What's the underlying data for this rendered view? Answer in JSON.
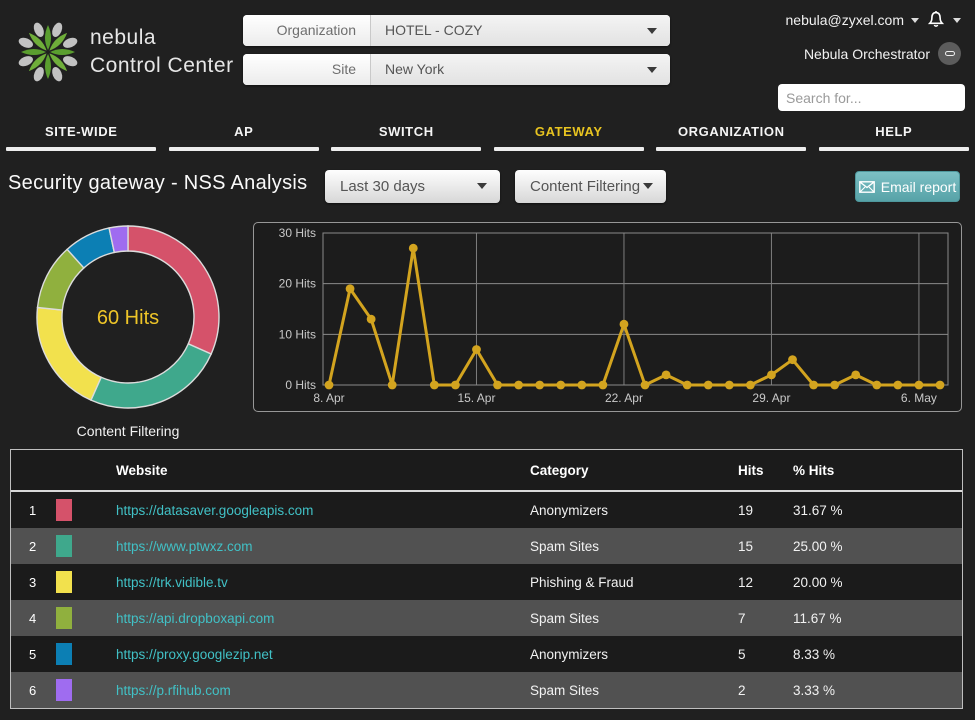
{
  "header": {
    "brand_line1": "nebula",
    "brand_line2": "Control Center",
    "org_selector": {
      "label": "Organization",
      "value": "HOTEL - COZY"
    },
    "site_selector": {
      "label": "Site",
      "value": "New York"
    },
    "account_email": "nebula@zyxel.com",
    "orchestrator_label": "Nebula Orchestrator",
    "search_placeholder": "Search for..."
  },
  "nav": {
    "tabs": [
      {
        "label": "SITE-WIDE",
        "active": false
      },
      {
        "label": "AP",
        "active": false
      },
      {
        "label": "SWITCH",
        "active": false
      },
      {
        "label": "GATEWAY",
        "active": true
      },
      {
        "label": "ORGANIZATION",
        "active": false
      },
      {
        "label": "HELP",
        "active": false
      }
    ],
    "active_color": "#e8c420"
  },
  "toolbar": {
    "page_title": "Security gateway - NSS Analysis",
    "time_filter_value": "Last 30 days",
    "type_filter_value": "Content Filtering",
    "email_report_label": "Email report",
    "email_button_color": "#63adb2"
  },
  "chart_data": [
    {
      "type": "pie",
      "style": "donut",
      "title": "Content Filtering",
      "center_label": "60 Hits",
      "total_hits": 60,
      "legend_position": "none",
      "slices": [
        {
          "label": "https://datasaver.googleapis.com",
          "category": "Anonymizers",
          "value": 19,
          "pct": 31.67,
          "color": "#d5526a"
        },
        {
          "label": "https://www.ptwxz.com",
          "category": "Spam Sites",
          "value": 15,
          "pct": 25.0,
          "color": "#3fa88c"
        },
        {
          "label": "https://trk.vidible.tv",
          "category": "Phishing & Fraud",
          "value": 12,
          "pct": 20.0,
          "color": "#f2e14d"
        },
        {
          "label": "https://api.dropboxapi.com",
          "category": "Spam Sites",
          "value": 7,
          "pct": 11.67,
          "color": "#90b03e"
        },
        {
          "label": "https://proxy.googlezip.net",
          "category": "Anonymizers",
          "value": 5,
          "pct": 8.33,
          "color": "#0c7fb4"
        },
        {
          "label": "https://p.rfihub.com",
          "category": "Spam Sites",
          "value": 2,
          "pct": 3.33,
          "color": "#9f6cf0"
        }
      ]
    },
    {
      "type": "line",
      "title": "",
      "xlabel": "",
      "ylabel": "Hits",
      "ylim": [
        0,
        30
      ],
      "yticks": [
        0,
        10,
        20,
        30
      ],
      "ytick_labels": [
        "0 Hits",
        "10 Hits",
        "20 Hits",
        "30 Hits"
      ],
      "grid": true,
      "x": [
        "8. Apr",
        "9. Apr",
        "10. Apr",
        "11. Apr",
        "12. Apr",
        "13. Apr",
        "14. Apr",
        "15. Apr",
        "16. Apr",
        "17. Apr",
        "18. Apr",
        "19. Apr",
        "20. Apr",
        "21. Apr",
        "22. Apr",
        "23. Apr",
        "24. Apr",
        "25. Apr",
        "26. Apr",
        "27. Apr",
        "28. Apr",
        "29. Apr",
        "30. Apr",
        "1. May",
        "2. May",
        "3. May",
        "4. May",
        "5. May",
        "6. May",
        "7. May"
      ],
      "xtick_shown_indices": [
        0,
        7,
        14,
        21,
        28
      ],
      "xtick_shown_labels": [
        "8. Apr",
        "15. Apr",
        "22. Apr",
        "29. Apr",
        "6. May"
      ],
      "series": [
        {
          "name": "Hits",
          "color": "#d3a41f",
          "values": [
            0,
            19,
            13,
            0,
            27,
            0,
            0,
            7,
            0,
            0,
            0,
            0,
            0,
            0,
            12,
            0,
            2,
            0,
            0,
            0,
            0,
            2,
            5,
            0,
            0,
            2,
            0,
            0,
            0,
            0
          ]
        }
      ]
    }
  ],
  "table": {
    "columns": [
      "Website",
      "Category",
      "Hits",
      "% Hits"
    ],
    "rows": [
      {
        "rank": 1,
        "swatch_color": "#d5526a",
        "website": "https://datasaver.googleapis.com",
        "category": "Anonymizers",
        "hits": 19,
        "pct": "31.67 %"
      },
      {
        "rank": 2,
        "swatch_color": "#3fa88c",
        "website": "https://www.ptwxz.com",
        "category": "Spam Sites",
        "hits": 15,
        "pct": "25.00 %"
      },
      {
        "rank": 3,
        "swatch_color": "#f2e14d",
        "website": "https://trk.vidible.tv",
        "category": "Phishing & Fraud",
        "hits": 12,
        "pct": "20.00 %"
      },
      {
        "rank": 4,
        "swatch_color": "#90b03e",
        "website": "https://api.dropboxapi.com",
        "category": "Spam Sites",
        "hits": 7,
        "pct": "11.67 %"
      },
      {
        "rank": 5,
        "swatch_color": "#0c7fb4",
        "website": "https://proxy.googlezip.net",
        "category": "Anonymizers",
        "hits": 5,
        "pct": "8.33 %"
      },
      {
        "rank": 6,
        "swatch_color": "#9f6cf0",
        "website": "https://p.rfihub.com",
        "category": "Spam Sites",
        "hits": 2,
        "pct": "3.33 %"
      }
    ]
  }
}
